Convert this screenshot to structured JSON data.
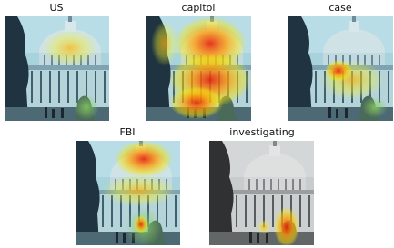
{
  "panels": [
    {
      "title": "US"
    },
    {
      "title": "capitol"
    },
    {
      "title": "case"
    },
    {
      "title": "FBI"
    },
    {
      "title": "investigating"
    }
  ]
}
